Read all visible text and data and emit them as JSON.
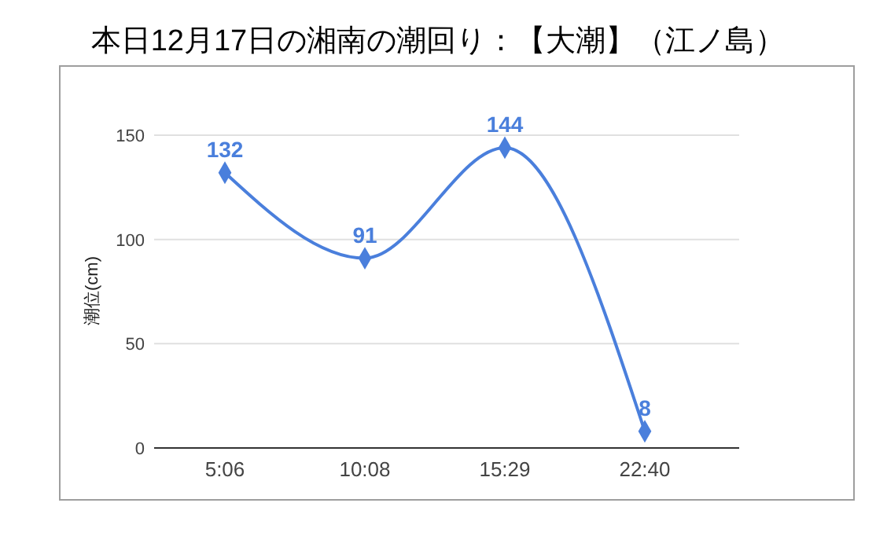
{
  "chart_data": {
    "type": "line",
    "title": "本日12月17日の湘南の潮回り：【大潮】（江ノ島）",
    "ylabel": "潮位(cm)",
    "categories": [
      "5:06",
      "10:08",
      "15:29",
      "22:40"
    ],
    "series": [
      {
        "color": "#4a7fdc",
        "values": [
          132,
          91,
          144,
          8
        ]
      }
    ],
    "ylim": [
      0,
      150
    ],
    "yticks": [
      0,
      50,
      100,
      150
    ],
    "grid": "y",
    "marker": "diamond",
    "data_labels": true
  }
}
